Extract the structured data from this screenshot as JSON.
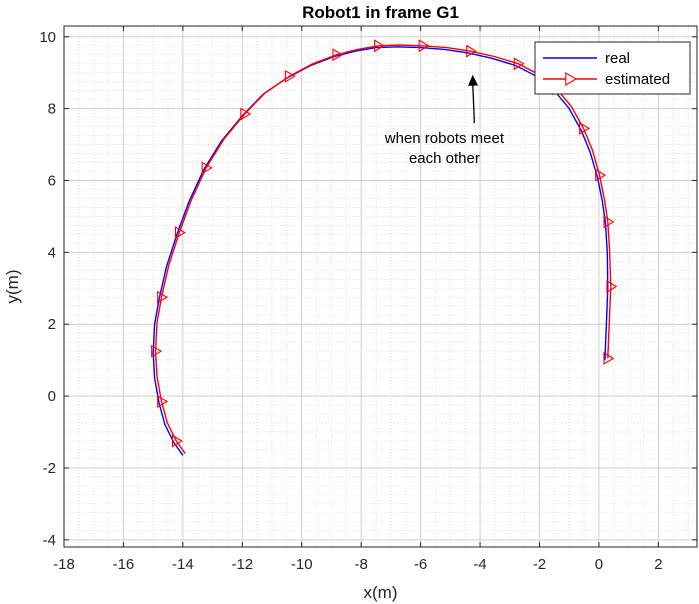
{
  "chart_data": {
    "type": "line",
    "title": "Robot1 in frame G1",
    "xlabel": "x(m)",
    "ylabel": "y(m)",
    "xlim": [
      -18,
      3.3
    ],
    "ylim": [
      -4.2,
      10.3
    ],
    "xticks": [
      -18,
      -16,
      -14,
      -12,
      -10,
      -8,
      -6,
      -4,
      -2,
      0,
      2
    ],
    "yticks": [
      -4,
      -2,
      0,
      2,
      4,
      6,
      8,
      10
    ],
    "grid": true,
    "minor_grid": true,
    "legend_position": "top-right",
    "series": [
      {
        "name": "real",
        "color": "#0000ff",
        "marker": "none",
        "x": [
          0.2,
          0.25,
          0.3,
          0.28,
          0.22,
          0.12,
          -0.05,
          -0.3,
          -0.6,
          -1.0,
          -1.5,
          -2.1,
          -2.8,
          -3.6,
          -4.4,
          -5.2,
          -6.0,
          -6.8,
          -7.5,
          -8.2,
          -8.9,
          -9.7,
          -10.5,
          -11.3,
          -12.0,
          -12.7,
          -13.3,
          -13.8,
          -14.2,
          -14.55,
          -14.8,
          -14.95,
          -15.0,
          -14.95,
          -14.8,
          -14.6,
          -14.3,
          -14.0
        ],
        "y": [
          1.0,
          2.0,
          3.0,
          4.0,
          4.8,
          5.4,
          6.1,
          6.8,
          7.4,
          8.0,
          8.5,
          8.9,
          9.2,
          9.4,
          9.55,
          9.65,
          9.7,
          9.72,
          9.7,
          9.6,
          9.45,
          9.2,
          8.85,
          8.4,
          7.8,
          7.1,
          6.3,
          5.4,
          4.5,
          3.6,
          2.7,
          2.0,
          1.2,
          0.5,
          -0.2,
          -0.8,
          -1.3,
          -1.65
        ]
      },
      {
        "name": "estimated",
        "color": "#ff0000",
        "marker": "triangle-right",
        "marker_every": 2,
        "x": [
          0.3,
          0.35,
          0.4,
          0.36,
          0.3,
          0.19,
          0.02,
          -0.22,
          -0.52,
          -0.92,
          -1.42,
          -2.02,
          -2.72,
          -3.52,
          -4.32,
          -5.12,
          -5.92,
          -6.72,
          -7.42,
          -8.12,
          -8.82,
          -9.62,
          -10.42,
          -11.22,
          -11.92,
          -12.62,
          -13.22,
          -13.72,
          -14.12,
          -14.47,
          -14.72,
          -14.87,
          -14.92,
          -14.87,
          -14.72,
          -14.52,
          -14.22,
          -13.92
        ],
        "y": [
          1.05,
          2.05,
          3.05,
          4.05,
          4.85,
          5.45,
          6.15,
          6.85,
          7.45,
          8.05,
          8.55,
          8.95,
          9.25,
          9.45,
          9.6,
          9.7,
          9.75,
          9.77,
          9.75,
          9.65,
          9.5,
          9.25,
          8.9,
          8.45,
          7.85,
          7.15,
          6.35,
          5.45,
          4.55,
          3.65,
          2.75,
          2.05,
          1.25,
          0.55,
          -0.15,
          -0.75,
          -1.25,
          -1.6
        ]
      }
    ],
    "annotation": {
      "lines": [
        "when robots meet",
        "each other"
      ],
      "target": [
        -4.25,
        9.0
      ],
      "text_anchor": [
        -5.2,
        6.65
      ]
    }
  }
}
